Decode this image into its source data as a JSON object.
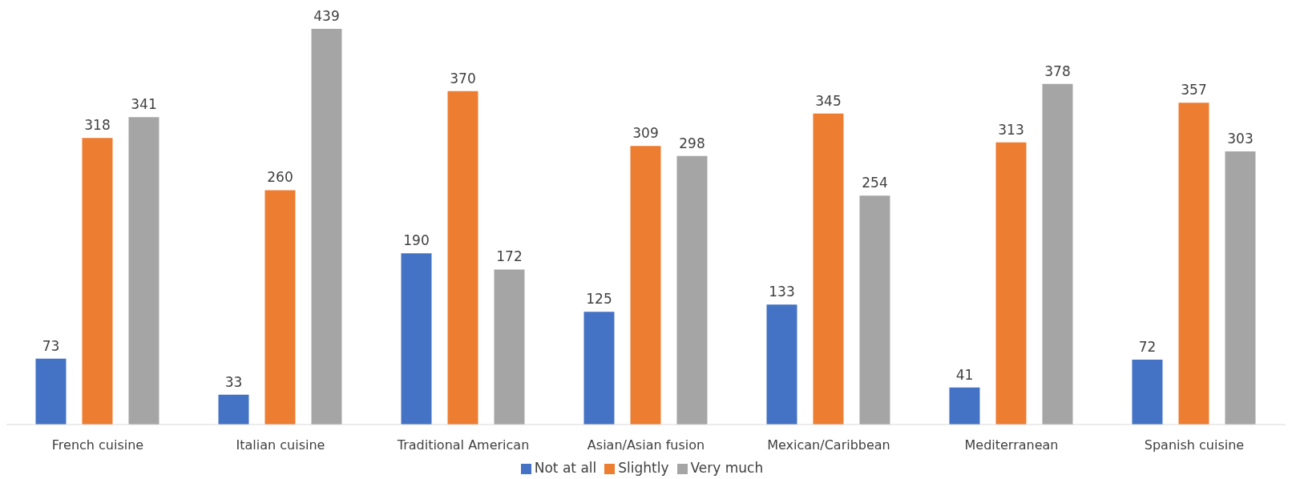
{
  "chart_data": {
    "type": "bar",
    "categories": [
      "French cuisine",
      "Italian cuisine",
      "Traditional American",
      "Asian/Asian fusion",
      "Mexican/Caribbean",
      "Mediterranean",
      "Spanish cuisine"
    ],
    "series": [
      {
        "name": "Not at all",
        "color": "#4472c4",
        "values": [
          73,
          33,
          190,
          125,
          133,
          41,
          72
        ]
      },
      {
        "name": "Slightly",
        "color": "#ed7d31",
        "values": [
          318,
          260,
          370,
          309,
          345,
          313,
          357
        ]
      },
      {
        "name": "Very much",
        "color": "#a5a5a5",
        "values": [
          341,
          439,
          172,
          298,
          254,
          378,
          303
        ]
      }
    ],
    "data_labels": true,
    "grid": false,
    "legend": "bottom"
  }
}
